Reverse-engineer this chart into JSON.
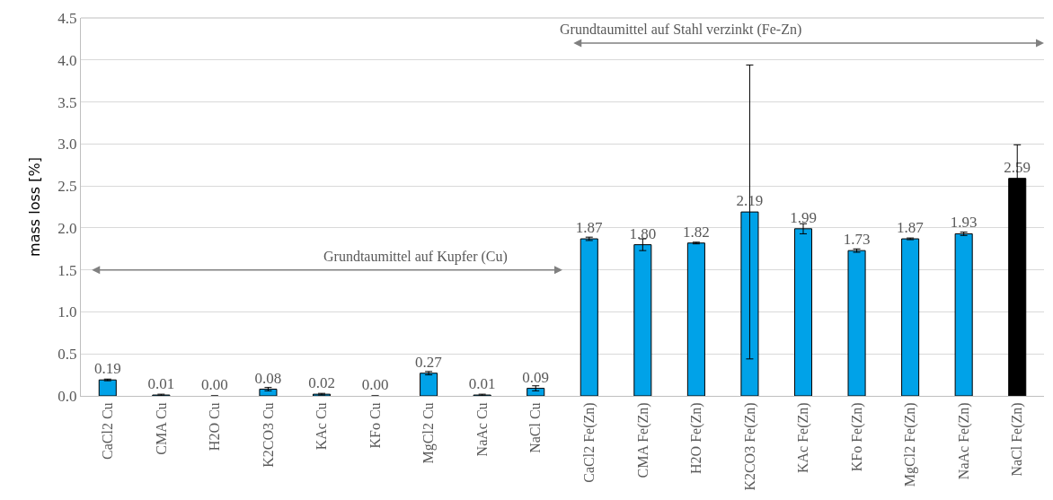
{
  "chart_data": {
    "type": "bar",
    "ylabel": "mass loss [%]",
    "categories": [
      "CaCl2 Cu",
      "CMA Cu",
      "H2O Cu",
      "K2CO3 Cu",
      "KAc Cu",
      "KFo Cu",
      "MgCl2 Cu",
      "NaAc Cu",
      "NaCl Cu",
      "CaCl2 Fe(Zn)",
      "CMA Fe(Zn)",
      "H2O Fe(Zn)",
      "K2CO3 Fe(Zn)",
      "KAc Fe(Zn)",
      "KFo Fe(Zn)",
      "MgCl2 Fe(Zn)",
      "NaAc Fe(Zn)",
      "NaCl Fe(Zn)"
    ],
    "values": [
      0.19,
      0.01,
      0.0,
      0.08,
      0.02,
      0.0,
      0.27,
      0.01,
      0.09,
      1.87,
      1.8,
      1.82,
      2.19,
      1.99,
      1.73,
      1.87,
      1.93,
      2.59
    ],
    "errors": [
      0.01,
      0.01,
      null,
      0.02,
      0.01,
      null,
      0.02,
      0.01,
      0.03,
      0.02,
      0.07,
      0.01,
      1.75,
      0.06,
      0.02,
      0.01,
      0.02,
      0.4
    ],
    "colors": [
      "#00a2e8",
      "#00a2e8",
      "#00a2e8",
      "#00a2e8",
      "#00a2e8",
      "#00a2e8",
      "#00a2e8",
      "#00a2e8",
      "#00a2e8",
      "#00a2e8",
      "#00a2e8",
      "#00a2e8",
      "#00a2e8",
      "#00a2e8",
      "#00a2e8",
      "#00a2e8",
      "#00a2e8",
      "#000000"
    ],
    "value_labels": [
      "0.19",
      "0.01",
      "0.00",
      "0.08",
      "0.02",
      "0.00",
      "0.27",
      "0.01",
      "0.09",
      "1.87",
      "1.80",
      "1.82",
      "2.19",
      "1.99",
      "1.73",
      "1.87",
      "1.93",
      "2.59"
    ],
    "ylim": [
      0,
      4.5
    ],
    "yticks": [
      {
        "value": 0,
        "label": "0.0"
      },
      {
        "value": 0.5,
        "label": "0.5"
      },
      {
        "value": 1,
        "label": "1.0"
      },
      {
        "value": 1.5,
        "label": "1.5"
      },
      {
        "value": 2,
        "label": "2.0"
      },
      {
        "value": 2.5,
        "label": "2.5"
      },
      {
        "value": 3,
        "label": "3.0"
      },
      {
        "value": 3.5,
        "label": "3.5"
      },
      {
        "value": 4,
        "label": "4.0"
      },
      {
        "value": 4.5,
        "label": "4.5"
      }
    ],
    "grid": "y",
    "legend": false,
    "annotations": [
      "Grundtaumittel auf Kupfer (Cu)",
      "Grundtaumittel auf Stahl verzinkt (Fe-Zn)"
    ]
  }
}
